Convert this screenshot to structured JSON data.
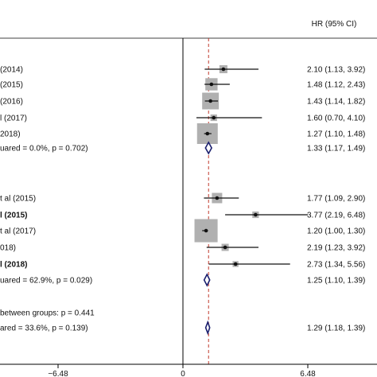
{
  "chart_data": {
    "type": "forest",
    "header": "HR (95% CI)",
    "x_ticks": [
      "−6.48",
      "0",
      "6.48"
    ],
    "x_tick_values": [
      -6.48,
      0,
      6.48
    ],
    "xlim": [
      -8.2,
      9.0
    ],
    "reference_line": 1.33,
    "rows": [
      {
        "label": "(2014)",
        "hr": 2.1,
        "lo": 1.13,
        "hi": 3.92,
        "weight": 0.15,
        "ci": "2.10 (1.13, 3.92)",
        "type": "study"
      },
      {
        "label": "(2015)",
        "hr": 1.48,
        "lo": 1.12,
        "hi": 2.43,
        "weight": 0.35,
        "ci": "1.48 (1.12, 2.43)",
        "type": "study"
      },
      {
        "label": "(2016)",
        "hr": 1.43,
        "lo": 1.14,
        "hi": 1.82,
        "weight": 0.65,
        "ci": "1.43 (1.14, 1.82)",
        "type": "study"
      },
      {
        "label": "l (2017)",
        "hr": 1.6,
        "lo": 0.7,
        "hi": 4.1,
        "weight": 0.1,
        "ci": "1.60 (0.70, 4.10)",
        "type": "study"
      },
      {
        "label": "2018)",
        "hr": 1.27,
        "lo": 1.1,
        "hi": 1.48,
        "weight": 1.0,
        "ci": "1.27 (1.10, 1.48)",
        "type": "study"
      },
      {
        "label": "uared = 0.0%, p = 0.702)",
        "hr": 1.33,
        "lo": 1.17,
        "hi": 1.49,
        "ci": "1.33 (1.17, 1.49)",
        "type": "subtotal"
      },
      {
        "label": "t al (2015)",
        "hr": 1.77,
        "lo": 1.09,
        "hi": 2.9,
        "weight": 0.25,
        "ci": "1.77 (1.09, 2.90)",
        "type": "study"
      },
      {
        "label": "l (2015)",
        "hr": 3.77,
        "lo": 2.19,
        "hi": 6.48,
        "weight": 0.1,
        "ci": "3.77 (2.19, 6.48)",
        "type": "study"
      },
      {
        "label": "t al (2017)",
        "hr": 1.2,
        "lo": 1.0,
        "hi": 1.3,
        "weight": 1.25,
        "ci": "1.20 (1.00, 1.30)",
        "type": "study"
      },
      {
        "label": "018)",
        "hr": 2.19,
        "lo": 1.23,
        "hi": 3.92,
        "weight": 0.12,
        "ci": "2.19 (1.23, 3.92)",
        "type": "study"
      },
      {
        "label": "l (2018)",
        "hr": 2.73,
        "lo": 1.34,
        "hi": 5.56,
        "weight": 0.08,
        "ci": "2.73 (1.34, 5.56)",
        "type": "study"
      },
      {
        "label": "uared = 62.9%, p = 0.029)",
        "hr": 1.25,
        "lo": 1.1,
        "hi": 1.39,
        "ci": "1.25 (1.10, 1.39)",
        "type": "subtotal"
      },
      {
        "label": "between groups: p = 0.441",
        "type": "note"
      },
      {
        "label": "ared = 33.6%, p = 0.139)",
        "hr": 1.29,
        "lo": 1.18,
        "hi": 1.39,
        "ci": "1.29 (1.18, 1.39)",
        "type": "overall"
      }
    ]
  },
  "colors": {
    "marker": "#111111",
    "box": "#b0b0b0",
    "diamond": "#1a1f6e",
    "reference_line": "#c0392b",
    "axis": "#000000"
  }
}
